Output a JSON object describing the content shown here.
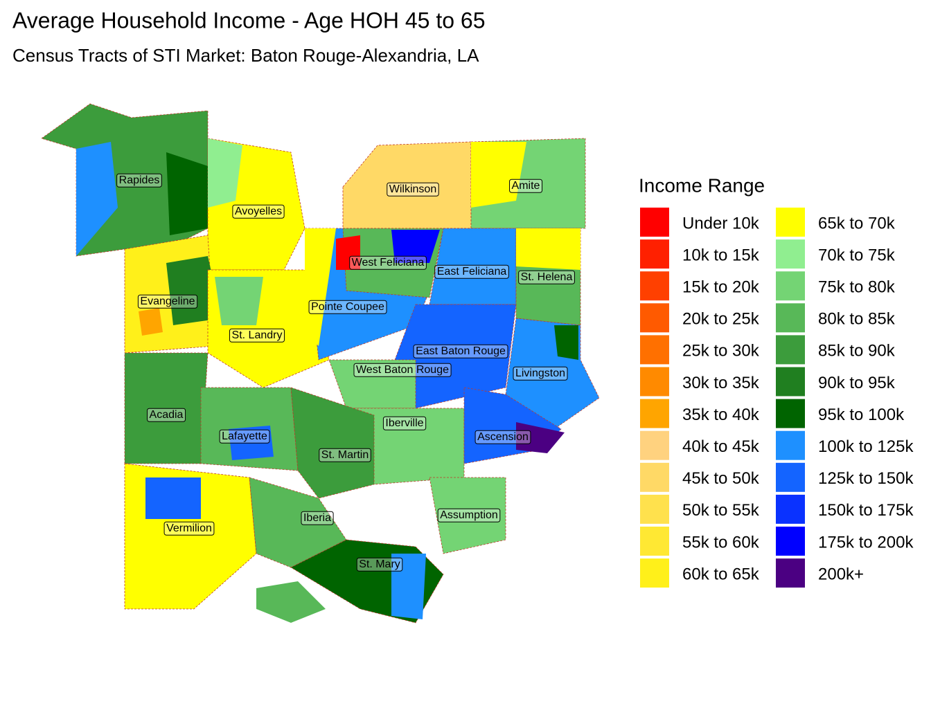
{
  "header": {
    "title": "Average Household Income - Age HOH 45 to 65",
    "subtitle": "Census Tracts of STI Market: Baton Rouge-Alexandria, LA"
  },
  "legend": {
    "title": "Income Range",
    "items": [
      {
        "label": "Under 10k",
        "color": "#FF0000"
      },
      {
        "label": "10k to 15k",
        "color": "#FF2000"
      },
      {
        "label": "15k to 20k",
        "color": "#FF4000"
      },
      {
        "label": "20k to 25k",
        "color": "#FF5A00"
      },
      {
        "label": "25k to 30k",
        "color": "#FF7000"
      },
      {
        "label": "30k to 35k",
        "color": "#FF8A00"
      },
      {
        "label": "35k to 40k",
        "color": "#FFA500"
      },
      {
        "label": "40k to 45k",
        "color": "#FFD27F"
      },
      {
        "label": "45k to 50k",
        "color": "#FFD966"
      },
      {
        "label": "50k to 55k",
        "color": "#FFE14D"
      },
      {
        "label": "55k to 60k",
        "color": "#FFE833"
      },
      {
        "label": "60k to 65k",
        "color": "#FFF01A"
      },
      {
        "label": "65k to 70k",
        "color": "#FFFF00"
      },
      {
        "label": "70k to 75k",
        "color": "#90EE90"
      },
      {
        "label": "75k to 80k",
        "color": "#74D474"
      },
      {
        "label": "80k to 85k",
        "color": "#58B858"
      },
      {
        "label": "85k to 90k",
        "color": "#3C9C3C"
      },
      {
        "label": "90k to 95k",
        "color": "#207F20"
      },
      {
        "label": "95k to 100k",
        "color": "#006400"
      },
      {
        "label": "100k to 125k",
        "color": "#1E90FF"
      },
      {
        "label": "125k to 150k",
        "color": "#1464FF"
      },
      {
        "label": "150k to 175k",
        "color": "#0A32FF"
      },
      {
        "label": "175k to 200k",
        "color": "#0000FF"
      },
      {
        "label": "200k+",
        "color": "#4B0082"
      }
    ]
  },
  "parishes": [
    {
      "label": "Rapides"
    },
    {
      "label": "Avoyelles"
    },
    {
      "label": "Wilkinson"
    },
    {
      "label": "Amite"
    },
    {
      "label": "West Feliciana"
    },
    {
      "label": "East Feliciana"
    },
    {
      "label": "St. Helena"
    },
    {
      "label": "Evangeline"
    },
    {
      "label": "Pointe Coupee"
    },
    {
      "label": "St. Landry"
    },
    {
      "label": "East Baton Rouge"
    },
    {
      "label": "West Baton Rouge"
    },
    {
      "label": "Livingston"
    },
    {
      "label": "Acadia"
    },
    {
      "label": "Iberville"
    },
    {
      "label": "Ascension"
    },
    {
      "label": "Lafayette"
    },
    {
      "label": "St. Martin"
    },
    {
      "label": "Assumption"
    },
    {
      "label": "Vermilion"
    },
    {
      "label": "Iberia"
    },
    {
      "label": "St. Mary"
    }
  ]
}
